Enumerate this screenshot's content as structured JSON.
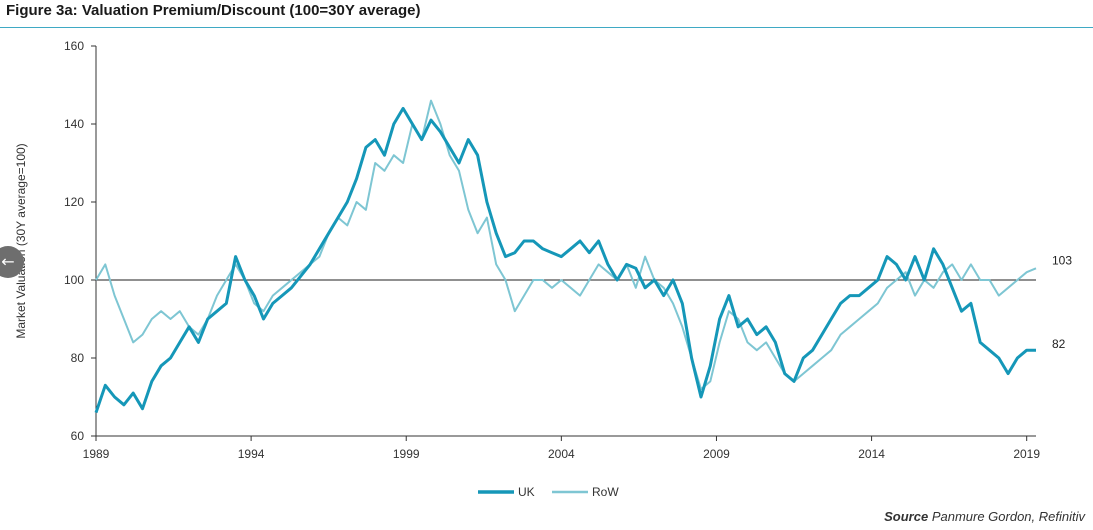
{
  "page": {
    "title": "Figure 3a: Valuation Premium/Discount (100=30Y average)",
    "source_label": "Source",
    "source_text": "Panmure Gordon, Refinitiv",
    "back_icon": "arrow-left-icon"
  },
  "chart_data": {
    "type": "line",
    "title": "Figure 3a: Valuation Premium/Discount (100=30Y average)",
    "xlabel": "",
    "ylabel": "Market Valuation (30Y average=100)",
    "xlim": [
      1989,
      2019.3
    ],
    "ylim": [
      60,
      160
    ],
    "x_ticks": [
      1989,
      1994,
      1999,
      2004,
      2009,
      2014,
      2019
    ],
    "y_ticks": [
      60,
      80,
      100,
      120,
      140,
      160
    ],
    "reference_line": 100,
    "grid": false,
    "legend_position": "bottom-center",
    "end_labels": [
      "103",
      "82"
    ],
    "series": [
      {
        "name": "UK",
        "color": "#1597b8",
        "x": [
          1989.0,
          1989.3,
          1989.6,
          1989.9,
          1990.2,
          1990.5,
          1990.8,
          1991.1,
          1991.4,
          1991.7,
          1992.0,
          1992.3,
          1992.6,
          1992.9,
          1993.2,
          1993.5,
          1993.8,
          1994.1,
          1994.4,
          1994.7,
          1995.0,
          1995.3,
          1995.6,
          1995.9,
          1996.2,
          1996.5,
          1996.8,
          1997.1,
          1997.4,
          1997.7,
          1998.0,
          1998.3,
          1998.6,
          1998.9,
          1999.2,
          1999.5,
          1999.8,
          2000.1,
          2000.4,
          2000.7,
          2001.0,
          2001.3,
          2001.6,
          2001.9,
          2002.2,
          2002.5,
          2002.8,
          2003.1,
          2003.4,
          2003.7,
          2004.0,
          2004.3,
          2004.6,
          2004.9,
          2005.2,
          2005.5,
          2005.8,
          2006.1,
          2006.4,
          2006.7,
          2007.0,
          2007.3,
          2007.6,
          2007.9,
          2008.2,
          2008.5,
          2008.8,
          2009.1,
          2009.4,
          2009.7,
          2010.0,
          2010.3,
          2010.6,
          2010.9,
          2011.2,
          2011.5,
          2011.8,
          2012.1,
          2012.4,
          2012.7,
          2013.0,
          2013.3,
          2013.6,
          2013.9,
          2014.2,
          2014.5,
          2014.8,
          2015.1,
          2015.4,
          2015.7,
          2016.0,
          2016.3,
          2016.6,
          2016.9,
          2017.2,
          2017.5,
          2017.8,
          2018.1,
          2018.4,
          2018.7,
          2019.0,
          2019.3
        ],
        "values": [
          66,
          73,
          70,
          68,
          71,
          67,
          74,
          78,
          80,
          84,
          88,
          84,
          90,
          92,
          94,
          106,
          100,
          96,
          90,
          94,
          96,
          98,
          101,
          104,
          108,
          112,
          116,
          120,
          126,
          134,
          136,
          132,
          140,
          144,
          140,
          136,
          141,
          138,
          134,
          130,
          136,
          132,
          120,
          112,
          106,
          107,
          110,
          110,
          108,
          107,
          106,
          108,
          110,
          107,
          110,
          104,
          100,
          104,
          103,
          98,
          100,
          96,
          100,
          94,
          80,
          70,
          78,
          90,
          96,
          88,
          90,
          86,
          88,
          84,
          76,
          74,
          80,
          82,
          86,
          90,
          94,
          96,
          96,
          98,
          100,
          106,
          104,
          100,
          106,
          100,
          108,
          104,
          98,
          92,
          94,
          84,
          82,
          80,
          76,
          80,
          82,
          82
        ]
      },
      {
        "name": "RoW",
        "color": "#7ec6d3",
        "x": [
          1989.0,
          1989.3,
          1989.6,
          1989.9,
          1990.2,
          1990.5,
          1990.8,
          1991.1,
          1991.4,
          1991.7,
          1992.0,
          1992.3,
          1992.6,
          1992.9,
          1993.2,
          1993.5,
          1993.8,
          1994.1,
          1994.4,
          1994.7,
          1995.0,
          1995.3,
          1995.6,
          1995.9,
          1996.2,
          1996.5,
          1996.8,
          1997.1,
          1997.4,
          1997.7,
          1998.0,
          1998.3,
          1998.6,
          1998.9,
          1999.2,
          1999.5,
          1999.8,
          2000.1,
          2000.4,
          2000.7,
          2001.0,
          2001.3,
          2001.6,
          2001.9,
          2002.2,
          2002.5,
          2002.8,
          2003.1,
          2003.4,
          2003.7,
          2004.0,
          2004.3,
          2004.6,
          2004.9,
          2005.2,
          2005.5,
          2005.8,
          2006.1,
          2006.4,
          2006.7,
          2007.0,
          2007.3,
          2007.6,
          2007.9,
          2008.2,
          2008.5,
          2008.8,
          2009.1,
          2009.4,
          2009.7,
          2010.0,
          2010.3,
          2010.6,
          2010.9,
          2011.2,
          2011.5,
          2011.8,
          2012.1,
          2012.4,
          2012.7,
          2013.0,
          2013.3,
          2013.6,
          2013.9,
          2014.2,
          2014.5,
          2014.8,
          2015.1,
          2015.4,
          2015.7,
          2016.0,
          2016.3,
          2016.6,
          2016.9,
          2017.2,
          2017.5,
          2017.8,
          2018.1,
          2018.4,
          2018.7,
          2019.0,
          2019.3
        ],
        "values": [
          100,
          104,
          96,
          90,
          84,
          86,
          90,
          92,
          90,
          92,
          88,
          86,
          90,
          96,
          100,
          104,
          100,
          94,
          92,
          96,
          98,
          100,
          102,
          104,
          106,
          112,
          116,
          114,
          120,
          118,
          130,
          128,
          132,
          130,
          140,
          136,
          146,
          140,
          132,
          128,
          118,
          112,
          116,
          104,
          100,
          92,
          96,
          100,
          100,
          98,
          100,
          98,
          96,
          100,
          104,
          102,
          100,
          104,
          98,
          106,
          100,
          98,
          94,
          88,
          80,
          72,
          74,
          84,
          92,
          90,
          84,
          82,
          84,
          80,
          76,
          74,
          76,
          78,
          80,
          82,
          86,
          88,
          90,
          92,
          94,
          98,
          100,
          102,
          96,
          100,
          98,
          102,
          104,
          100,
          104,
          100,
          100,
          96,
          98,
          100,
          102,
          103
        ]
      }
    ]
  }
}
